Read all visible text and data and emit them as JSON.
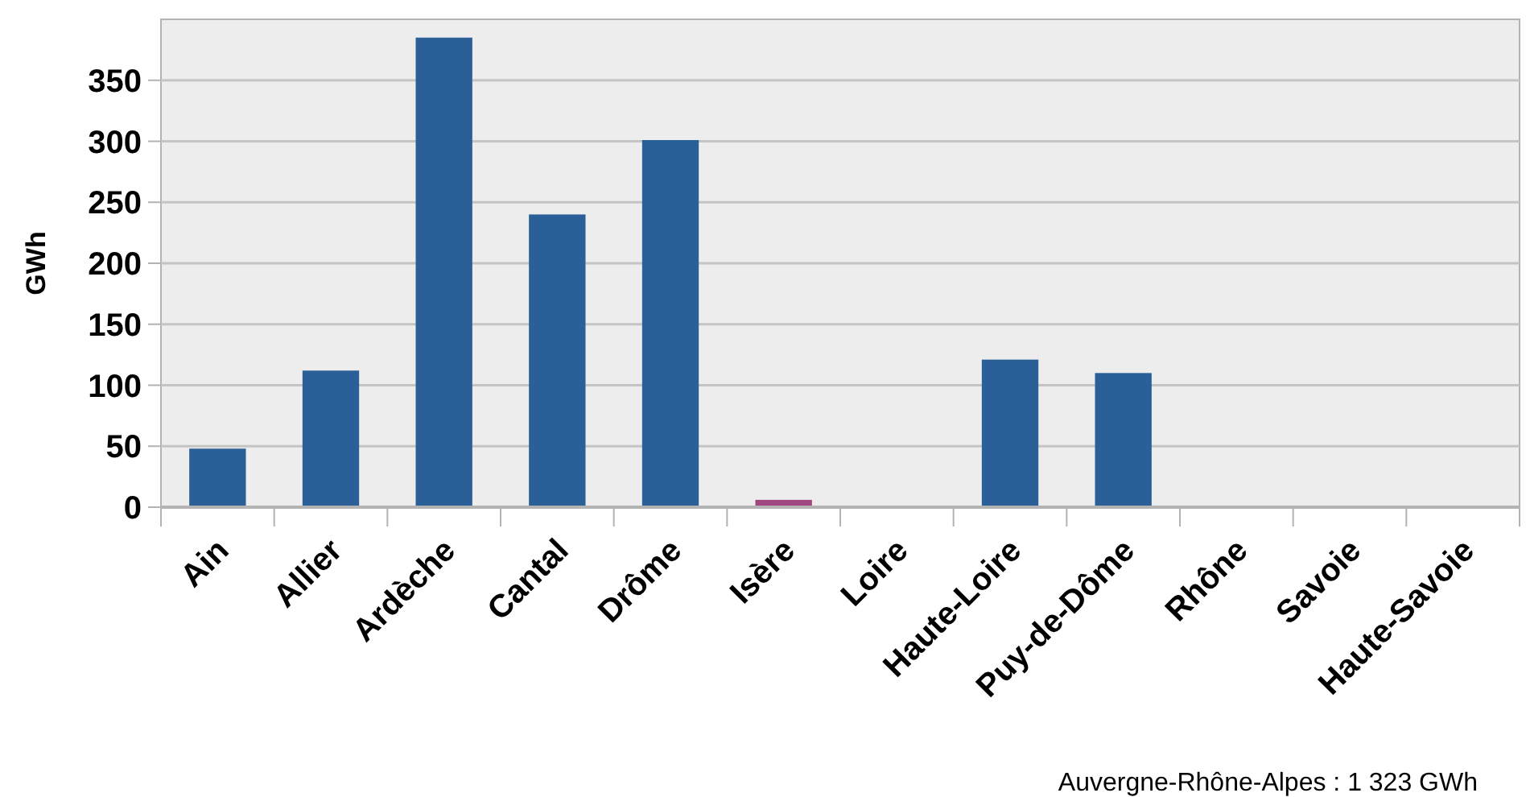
{
  "chart_data": {
    "type": "bar",
    "ylabel": "GWh",
    "categories": [
      "Ain",
      "Allier",
      "Ardèche",
      "Cantal",
      "Drôme",
      "Isère",
      "Loire",
      "Haute-Loire",
      "Puy-de-Dôme",
      "Rhône",
      "Savoie",
      "Haute-Savoie"
    ],
    "values": [
      48,
      112,
      385,
      240,
      301,
      6,
      0,
      121,
      110,
      0,
      0,
      0
    ],
    "colors": [
      "#2a5f98",
      "#2a5f98",
      "#2a5f98",
      "#2a5f98",
      "#2a5f98",
      "#a0477f",
      "#2a5f98",
      "#2a5f98",
      "#2a5f98",
      "#2a5f98",
      "#2a5f98",
      "#2a5f98"
    ],
    "ylim": [
      0,
      400
    ],
    "yticks": [
      0,
      50,
      100,
      150,
      200,
      250,
      300,
      350
    ],
    "grid": "y",
    "annotations": [
      "Auvergne-Rhône-Alpes : 1 323 GWh"
    ]
  }
}
